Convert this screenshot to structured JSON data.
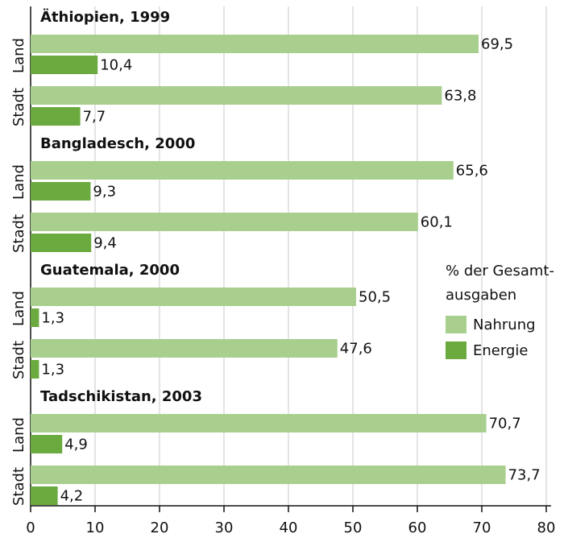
{
  "chart_data": {
    "type": "bar",
    "orientation": "horizontal",
    "panel_titles": [
      "Äthiopien, 1999",
      "Bangladesch, 2000",
      "Guatemala, 2000",
      "Tadschikistan, 2003"
    ],
    "categories": [
      "Land",
      "Stadt",
      "Land",
      "Stadt",
      "Land",
      "Stadt",
      "Land",
      "Stadt"
    ],
    "series": [
      {
        "name": "Nahrung",
        "color": "#a9cf8e",
        "values": [
          69.5,
          63.8,
          65.6,
          60.1,
          50.5,
          47.6,
          70.7,
          73.7
        ],
        "value_labels": [
          "69,5",
          "63,8",
          "65,6",
          "60,1",
          "50,5",
          "47,6",
          "70,7",
          "73,7"
        ]
      },
      {
        "name": "Energie",
        "color": "#6aaa3e",
        "values": [
          10.4,
          7.7,
          9.3,
          9.4,
          1.3,
          1.3,
          4.9,
          4.2
        ],
        "value_labels": [
          "10,4",
          "7,7",
          "9,3",
          "9,4",
          "1,3",
          "1,3",
          "4,9",
          "4,2"
        ]
      }
    ],
    "legend_title": [
      "% der Gesamt-",
      "ausgaben"
    ],
    "xlim": [
      0,
      80
    ],
    "xticks": [
      0,
      10,
      20,
      30,
      40,
      50,
      60,
      70,
      80
    ],
    "grid": true
  }
}
